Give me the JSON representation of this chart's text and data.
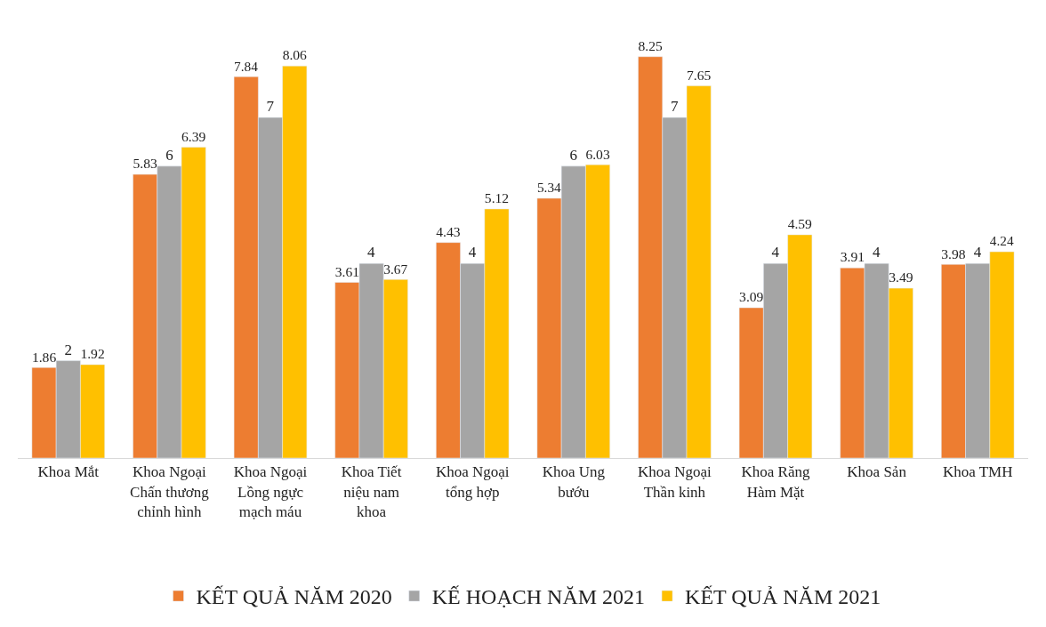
{
  "chart_data": {
    "type": "bar",
    "categories": [
      "Khoa Mắt",
      "Khoa Ngoại Chấn thương chỉnh hình",
      "Khoa Ngoại Lồng ngực mạch máu",
      "Khoa Tiết niệu nam khoa",
      "Khoa Ngoại tổng hợp",
      "Khoa Ung bướu",
      "Khoa Ngoại Thần kinh",
      "Khoa Răng Hàm Mặt",
      "Khoa Sản",
      "Khoa TMH"
    ],
    "series": [
      {
        "name": "KẾT QUẢ NĂM 2020",
        "color": "#ed7d31",
        "values": [
          1.86,
          5.83,
          7.84,
          3.61,
          4.43,
          5.34,
          8.25,
          3.09,
          3.91,
          3.98
        ]
      },
      {
        "name": "KẾ HOẠCH NĂM 2021",
        "color": "#a5a5a5",
        "values": [
          2,
          6,
          7,
          4,
          4,
          6,
          7,
          4,
          4,
          4
        ]
      },
      {
        "name": "KẾT QUẢ NĂM 2021",
        "color": "#ffc000",
        "values": [
          1.92,
          6.39,
          8.06,
          3.67,
          5.12,
          6.03,
          7.65,
          4.59,
          3.49,
          4.24
        ]
      }
    ],
    "data_labels": true,
    "legend": "bottom",
    "tick_labels": "x"
  }
}
